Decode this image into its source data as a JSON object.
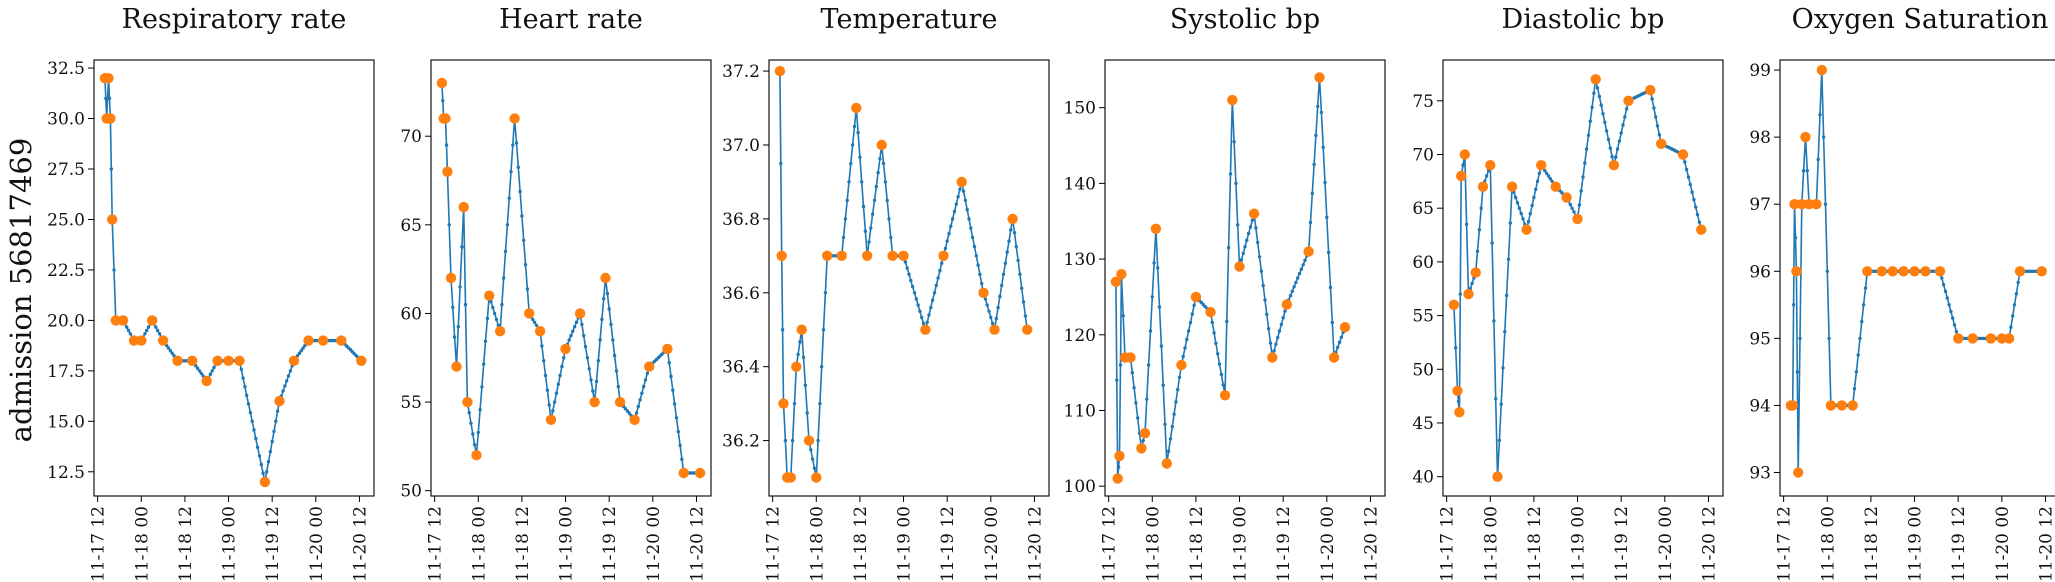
{
  "figure": {
    "row_label": "admission 5681746​9"
  },
  "colors": {
    "line": "#1f77b4",
    "marker": "#ff7f0e"
  },
  "x_tick_labels": [
    "11-17 12",
    "11-18 00",
    "11-18 12",
    "11-19 00",
    "11-19 12",
    "11-20 00",
    "11-20 12"
  ],
  "chart_data": [
    {
      "type": "line",
      "title": "Respiratory rate",
      "xlabel": "",
      "ylabel": "admission 5681746​9",
      "x_unit": "hours since 11-17 00:00",
      "xlim": [
        11,
        88
      ],
      "ylim": [
        11.3,
        32.9
      ],
      "yticks": [
        12.5,
        15.0,
        17.5,
        20.0,
        22.5,
        25.0,
        27.5,
        30.0,
        32.5
      ],
      "ytick_labels": [
        "12.5",
        "15.0",
        "17.5",
        "20.0",
        "22.5",
        "25.0",
        "27.5",
        "30.0",
        "32.5"
      ],
      "x": [
        14.0,
        14.5,
        15.0,
        15.5,
        16.0,
        17.0,
        19.0,
        22.0,
        24.0,
        27.0,
        30.0,
        34.0,
        38.0,
        42.0,
        45.0,
        48.0,
        51.0,
        58.0,
        62.0,
        66.0,
        70.0,
        74.0,
        79.0,
        84.5
      ],
      "y": [
        32,
        30,
        32,
        30,
        25,
        20,
        20,
        19,
        19,
        20,
        19,
        18,
        18,
        17,
        18,
        18,
        18,
        12,
        16,
        18,
        19,
        19,
        19,
        18
      ]
    },
    {
      "type": "line",
      "title": "Heart rate",
      "xlabel": "",
      "ylabel": "",
      "x_unit": "hours since 11-17 00:00",
      "xlim": [
        11,
        88
      ],
      "ylim": [
        49.7,
        74.3
      ],
      "yticks": [
        50,
        55,
        60,
        65,
        70
      ],
      "ytick_labels": [
        "50",
        "55",
        "60",
        "65",
        "70"
      ],
      "x": [
        14.0,
        14.5,
        15.0,
        15.5,
        16.5,
        18.0,
        20.0,
        21.0,
        23.5,
        27.0,
        30.0,
        34.0,
        38.0,
        41.0,
        44.0,
        48.0,
        52.0,
        56.0,
        59.0,
        63.0,
        67.0,
        71.0,
        76.0,
        80.5,
        85.0
      ],
      "y": [
        73,
        71,
        71,
        68,
        62,
        57,
        66,
        55,
        52,
        61,
        59,
        71,
        60,
        59,
        54,
        58,
        60,
        55,
        62,
        55,
        54,
        57,
        58,
        51,
        51
      ]
    },
    {
      "type": "line",
      "title": "Temperature",
      "xlabel": "",
      "ylabel": "",
      "x_unit": "hours since 11-17 00:00",
      "xlim": [
        11,
        88
      ],
      "ylim": [
        36.05,
        37.23
      ],
      "yticks": [
        36.2,
        36.4,
        36.6,
        36.8,
        37.0,
        37.2
      ],
      "ytick_labels": [
        "36.2",
        "36.4",
        "36.6",
        "36.8",
        "37.0",
        "37.2"
      ],
      "x": [
        14.0,
        14.5,
        15.0,
        16.0,
        17.0,
        18.5,
        20.0,
        22.0,
        24.0,
        27.0,
        31.0,
        35.0,
        38.0,
        42.0,
        45.0,
        48.0,
        54.0,
        59.0,
        64.0,
        70.0,
        73.0,
        78.0,
        82.0
      ],
      "y": [
        37.2,
        36.7,
        36.3,
        36.1,
        36.1,
        36.4,
        36.5,
        36.2,
        36.1,
        36.7,
        36.7,
        37.1,
        36.7,
        37.0,
        36.7,
        36.7,
        36.5,
        36.7,
        36.9,
        36.6,
        36.5,
        36.8,
        36.5
      ]
    },
    {
      "type": "line",
      "title": "Systolic bp",
      "xlabel": "",
      "ylabel": "",
      "x_unit": "hours since 11-17 00:00",
      "xlim": [
        11,
        88
      ],
      "ylim": [
        98.7,
        156.3
      ],
      "yticks": [
        100,
        110,
        120,
        130,
        140,
        150
      ],
      "ytick_labels": [
        "100",
        "110",
        "120",
        "130",
        "140",
        "150"
      ],
      "x": [
        14.0,
        14.5,
        15.0,
        15.5,
        16.5,
        18.0,
        21.0,
        22.0,
        25.0,
        28.0,
        32.0,
        36.0,
        40.0,
        44.0,
        46.0,
        48.0,
        52.0,
        57.0,
        61.0,
        67.0,
        70.0,
        74.0,
        77.0
      ],
      "y": [
        127,
        101,
        104,
        128,
        117,
        117,
        105,
        107,
        134,
        103,
        116,
        125,
        123,
        112,
        151,
        129,
        136,
        117,
        124,
        131,
        154,
        117,
        121
      ]
    },
    {
      "type": "line",
      "title": "Diastolic bp",
      "xlabel": "",
      "ylabel": "",
      "x_unit": "hours since 11-17 00:00",
      "xlim": [
        11,
        88
      ],
      "ylim": [
        38.2,
        78.8
      ],
      "yticks": [
        40,
        45,
        50,
        55,
        60,
        65,
        70,
        75
      ],
      "ytick_labels": [
        "40",
        "45",
        "50",
        "55",
        "60",
        "65",
        "70",
        "75"
      ],
      "x": [
        14.0,
        15.0,
        15.5,
        16.0,
        17.0,
        18.0,
        20.0,
        22.0,
        24.0,
        26.0,
        30.0,
        34.0,
        38.0,
        42.0,
        45.0,
        48.0,
        53.0,
        58.0,
        62.0,
        68.0,
        71.0,
        77.0,
        82.0
      ],
      "y": [
        56,
        48,
        46,
        68,
        70,
        57,
        59,
        67,
        69,
        40,
        67,
        63,
        69,
        67,
        66,
        64,
        77,
        69,
        75,
        76,
        71,
        70,
        63
      ]
    },
    {
      "type": "line",
      "title": "Oxygen Saturation",
      "xlabel": "",
      "ylabel": "",
      "x_unit": "hours since 11-17 00:00",
      "xlim": [
        11,
        88
      ],
      "ylim": [
        92.65,
        99.15
      ],
      "yticks": [
        93,
        94,
        95,
        96,
        97,
        98,
        99
      ],
      "ytick_labels": [
        "93",
        "94",
        "95",
        "96",
        "97",
        "98",
        "99"
      ],
      "x": [
        14.0,
        14.5,
        15.0,
        15.5,
        16.0,
        17.0,
        18.0,
        19.0,
        21.0,
        22.5,
        25.0,
        28.0,
        31.0,
        35.0,
        39.0,
        42.0,
        45.0,
        48.0,
        51.0,
        55.0,
        60.0,
        64.0,
        69.0,
        72.0,
        74.0,
        77.0,
        83.0
      ],
      "y": [
        94,
        94,
        97,
        96,
        93,
        97,
        98,
        97,
        97,
        99,
        94,
        94,
        94,
        96,
        96,
        96,
        96,
        96,
        96,
        96,
        95,
        95,
        95,
        95,
        95,
        96,
        96
      ]
    }
  ]
}
